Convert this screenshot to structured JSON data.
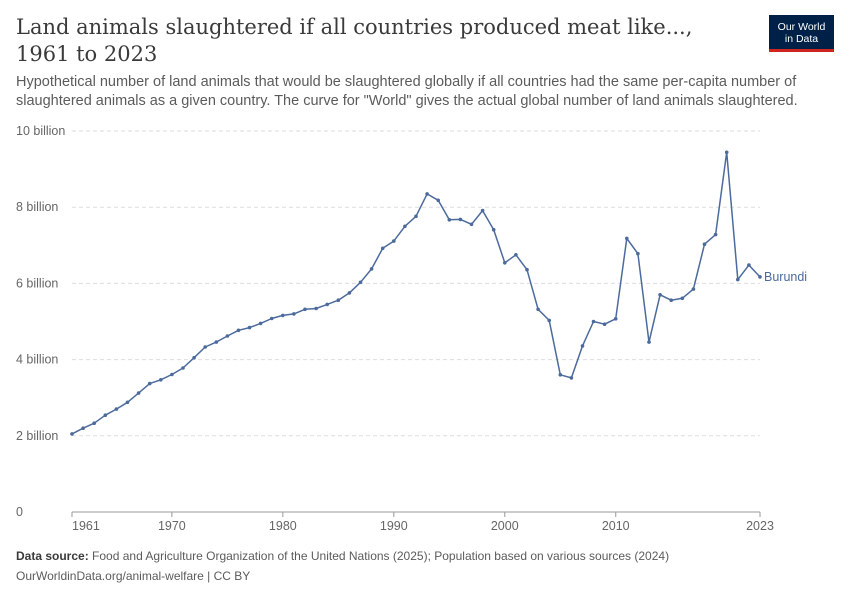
{
  "header": {
    "title": "Land animals slaughtered if all countries produced meat like..., 1961 to 2023",
    "subtitle": "Hypothetical number of land animals that would be slaughtered globally if all countries had the same per-capita number of slaughtered animals as a given country. The curve for \"World\" gives the actual global number of land animals slaughtered.",
    "logo_line1": "Our World",
    "logo_line2": "in Data"
  },
  "footer": {
    "source_label": "Data source:",
    "source_text": "Food and Agriculture Organization of the United Nations (2025); Population based on various sources (2024)",
    "url_license": "OurWorldinData.org/animal-welfare | CC BY"
  },
  "colors": {
    "series": "#4c6a9c",
    "grid": "#dddddd",
    "axis": "#999999",
    "tick_text": "#666666"
  },
  "chart_data": {
    "type": "line",
    "xlim": [
      1961,
      2023
    ],
    "ylim": [
      0,
      10000000000
    ],
    "yticks": [
      {
        "value": 0,
        "label": "0"
      },
      {
        "value": 2000000000,
        "label": "2 billion"
      },
      {
        "value": 4000000000,
        "label": "4 billion"
      },
      {
        "value": 6000000000,
        "label": "6 billion"
      },
      {
        "value": 8000000000,
        "label": "8 billion"
      },
      {
        "value": 10000000000,
        "label": "10 billion"
      }
    ],
    "xticks": [
      {
        "value": 1961,
        "label": "1961"
      },
      {
        "value": 1970,
        "label": "1970"
      },
      {
        "value": 1980,
        "label": "1980"
      },
      {
        "value": 1990,
        "label": "1990"
      },
      {
        "value": 2000,
        "label": "2000"
      },
      {
        "value": 2010,
        "label": "2010"
      },
      {
        "value": 2023,
        "label": "2023"
      }
    ],
    "grid": "horizontal-dashed",
    "series": [
      {
        "name": "Burundi",
        "x": [
          1961,
          1962,
          1963,
          1964,
          1965,
          1966,
          1967,
          1968,
          1969,
          1970,
          1971,
          1972,
          1973,
          1974,
          1975,
          1976,
          1977,
          1978,
          1979,
          1980,
          1981,
          1982,
          1983,
          1984,
          1985,
          1986,
          1987,
          1988,
          1989,
          1990,
          1991,
          1992,
          1993,
          1994,
          1995,
          1996,
          1997,
          1998,
          1999,
          2000,
          2001,
          2002,
          2003,
          2004,
          2005,
          2006,
          2007,
          2008,
          2009,
          2010,
          2011,
          2012,
          2013,
          2014,
          2015,
          2016,
          2017,
          2018,
          2019,
          2020,
          2021,
          2022,
          2023
        ],
        "y": [
          2050000000,
          2200000000,
          2330000000,
          2540000000,
          2700000000,
          2880000000,
          3120000000,
          3370000000,
          3470000000,
          3610000000,
          3780000000,
          4050000000,
          4330000000,
          4460000000,
          4620000000,
          4770000000,
          4840000000,
          4950000000,
          5080000000,
          5160000000,
          5200000000,
          5320000000,
          5340000000,
          5450000000,
          5560000000,
          5750000000,
          6030000000,
          6380000000,
          6920000000,
          7110000000,
          7500000000,
          7760000000,
          8350000000,
          8180000000,
          7670000000,
          7680000000,
          7550000000,
          7910000000,
          7410000000,
          6540000000,
          6750000000,
          6360000000,
          5320000000,
          5030000000,
          3600000000,
          3520000000,
          4360000000,
          5000000000,
          4930000000,
          5070000000,
          7180000000,
          6780000000,
          4460000000,
          5700000000,
          5560000000,
          5610000000,
          5850000000,
          7030000000,
          7280000000,
          9440000000,
          6100000000,
          6480000000,
          6170000000
        ]
      }
    ]
  }
}
